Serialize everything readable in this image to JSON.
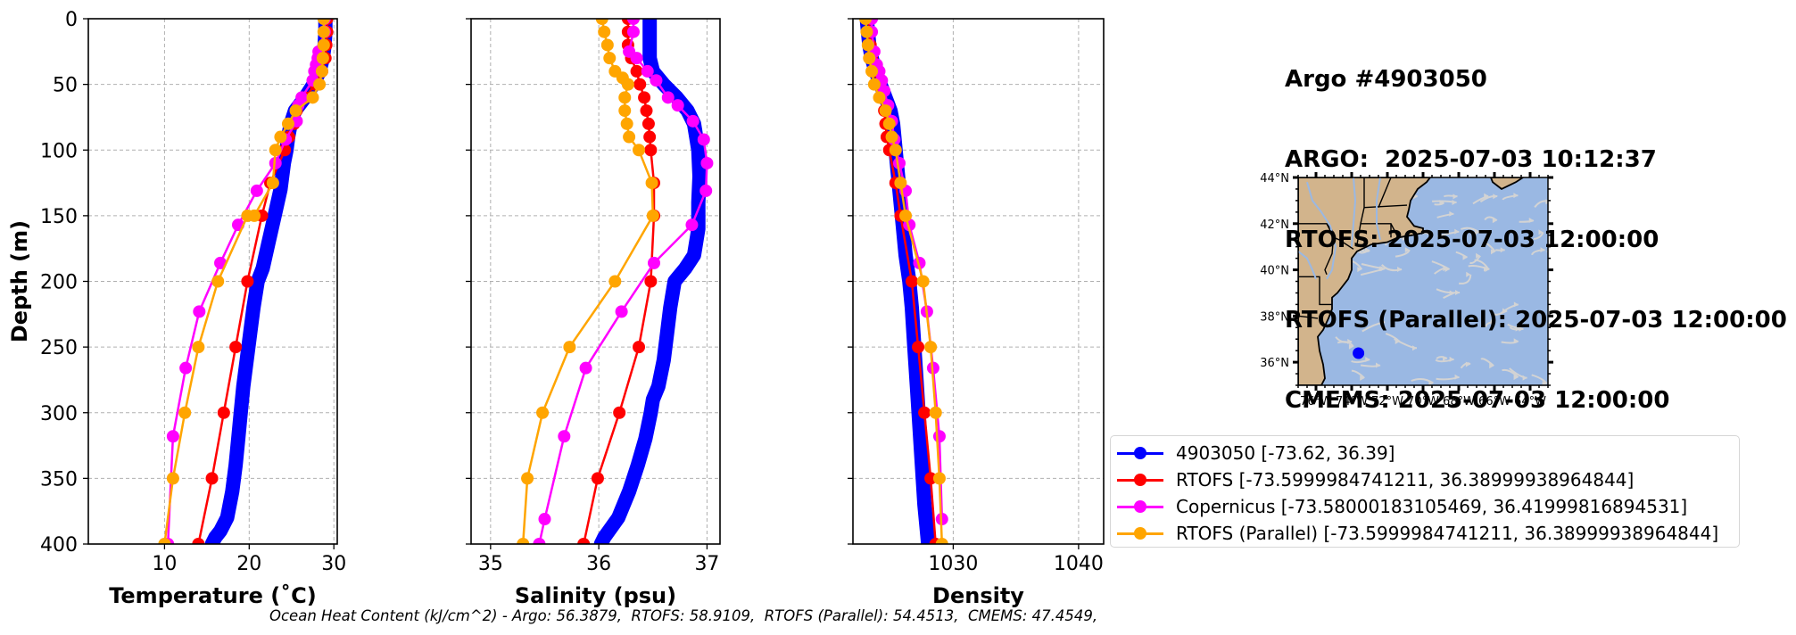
{
  "info": {
    "title": "Argo #4903050",
    "lines": [
      "ARGO:  2025-07-03 10:12:37",
      "RTOFS: 2025-07-03 12:00:00",
      "RTOFS (Parallel): 2025-07-03 12:00:00",
      "CMEMS: 2025-07-03 12:00:00"
    ]
  },
  "footnote": "Ocean Heat Content (kJ/cm^2) - Argo: 56.3879,  RTOFS: 58.9109,  RTOFS (Parallel): 54.4513,  CMEMS: 47.4549,",
  "legend": [
    {
      "label": "4903050 [-73.62, 36.39]",
      "color": "#0000ff"
    },
    {
      "label": "RTOFS [-73.5999984741211, 36.38999938964844]",
      "color": "#ff0000"
    },
    {
      "label": "Copernicus [-73.58000183105469, 36.41999816894531]",
      "color": "#ff00ff"
    },
    {
      "label": "RTOFS (Parallel) [-73.5999984741211, 36.38999938964844]",
      "color": "#ffa500"
    }
  ],
  "chart_data": [
    {
      "type": "line",
      "title": "",
      "xlabel": "Temperature (˚C)",
      "ylabel": "Depth (m)",
      "xlim": [
        1.0,
        30.4
      ],
      "ylim": [
        400,
        0
      ],
      "xticks": [
        10,
        20,
        30
      ],
      "yticks": [
        0,
        50,
        100,
        150,
        200,
        250,
        300,
        350,
        400
      ],
      "grid": true,
      "series": [
        {
          "name": "4903050",
          "color": "#0000ff",
          "thick": true,
          "x": [
            29.0,
            29.0,
            28.9,
            28.7,
            28.3,
            27.6,
            26.6,
            25.4,
            24.9,
            24.6,
            24.4,
            24.1,
            23.7,
            23.0,
            22.3,
            21.6,
            21.0,
            20.5,
            20.1,
            19.7,
            19.3,
            19.0,
            18.7,
            18.4,
            18.0,
            17.4,
            16.6,
            16.0,
            15.6
          ],
          "depth": [
            0,
            10,
            20,
            30,
            40,
            50,
            60,
            70,
            80,
            90,
            100,
            110,
            130,
            150,
            170,
            190,
            200,
            220,
            240,
            260,
            280,
            300,
            320,
            340,
            360,
            380,
            390,
            395,
            400
          ]
        },
        {
          "name": "RTOFS",
          "color": "#ff0000",
          "x": [
            29.2,
            29.2,
            29.1,
            29.0,
            28.6,
            27.8,
            26.6,
            25.6,
            25.3,
            24.7,
            24.2,
            22.5,
            21.5,
            19.8,
            18.4,
            17.0,
            15.6,
            14.0
          ],
          "depth": [
            0,
            10,
            20,
            30,
            40,
            50,
            60,
            70,
            80,
            90,
            100,
            125,
            150,
            200,
            250,
            300,
            350,
            400
          ]
        },
        {
          "name": "Copernicus",
          "color": "#ff00ff",
          "x": [
            28.9,
            28.9,
            28.2,
            28.1,
            27.9,
            27.7,
            27.5,
            26.2,
            25.8,
            25.6,
            24.3,
            23.1,
            20.9,
            18.7,
            16.6,
            14.1,
            12.5,
            11.0,
            10.4
          ],
          "depth": [
            0,
            10,
            25,
            30,
            35,
            40,
            47,
            60,
            66,
            78,
            92,
            110,
            131,
            157,
            186,
            223,
            266,
            318,
            400
          ]
        },
        {
          "name": "RTOFS (Parallel)",
          "color": "#ffa500",
          "x": [
            28.8,
            28.8,
            28.8,
            28.7,
            28.6,
            28.3,
            27.5,
            25.5,
            24.6,
            23.7,
            23.1,
            22.8,
            20.6,
            19.8,
            16.3,
            14.0,
            12.4,
            11.0,
            10.0
          ],
          "depth": [
            0,
            10,
            20,
            30,
            40,
            50,
            60,
            70,
            80,
            90,
            100,
            125,
            150,
            150,
            200,
            250,
            300,
            350,
            400
          ]
        }
      ]
    },
    {
      "type": "line",
      "title": "",
      "xlabel": "Salinity (psu)",
      "ylabel": "",
      "xlim": [
        34.82,
        37.12
      ],
      "ylim": [
        400,
        0
      ],
      "xticks": [
        35,
        36,
        37
      ],
      "yticks": [
        0,
        50,
        100,
        150,
        200,
        250,
        300,
        350,
        400
      ],
      "grid": true,
      "series": [
        {
          "name": "4903050",
          "color": "#0000ff",
          "thick": true,
          "x": [
            36.47,
            36.47,
            36.47,
            36.47,
            36.5,
            36.6,
            36.72,
            36.82,
            36.88,
            36.9,
            36.92,
            36.93,
            36.92,
            36.92,
            36.88,
            36.8,
            36.7,
            36.66,
            36.63,
            36.6,
            36.55,
            36.5,
            36.48,
            36.43,
            36.36,
            36.28,
            36.18,
            36.05,
            36.02
          ],
          "depth": [
            0,
            10,
            20,
            30,
            40,
            50,
            60,
            70,
            80,
            90,
            100,
            120,
            140,
            160,
            180,
            190,
            200,
            220,
            240,
            260,
            280,
            290,
            300,
            320,
            340,
            360,
            380,
            395,
            400
          ]
        },
        {
          "name": "RTOFS",
          "color": "#ff0000",
          "x": [
            36.27,
            36.27,
            36.27,
            36.3,
            36.35,
            36.38,
            36.42,
            36.44,
            36.46,
            36.47,
            36.48,
            36.51,
            36.51,
            36.48,
            36.37,
            36.19,
            35.99,
            35.86
          ],
          "depth": [
            0,
            10,
            20,
            30,
            40,
            50,
            60,
            70,
            80,
            90,
            100,
            125,
            150,
            200,
            250,
            300,
            350,
            400
          ]
        },
        {
          "name": "Copernicus",
          "color": "#ff00ff",
          "x": [
            36.32,
            36.32,
            36.28,
            36.35,
            36.45,
            36.53,
            36.64,
            36.73,
            36.87,
            36.97,
            37.0,
            36.99,
            36.86,
            36.51,
            36.21,
            35.88,
            35.68,
            35.5,
            35.45
          ],
          "depth": [
            0,
            10,
            25,
            30,
            40,
            47,
            60,
            66,
            78,
            92,
            110,
            131,
            157,
            186,
            223,
            266,
            318,
            381,
            400
          ]
        },
        {
          "name": "RTOFS (Parallel)",
          "color": "#ffa500",
          "x": [
            36.03,
            36.05,
            36.08,
            36.1,
            36.15,
            36.22,
            36.27,
            36.24,
            36.24,
            36.26,
            36.28,
            36.37,
            36.49,
            36.5,
            36.15,
            35.73,
            35.48,
            35.34,
            35.3
          ],
          "depth": [
            0,
            10,
            20,
            30,
            40,
            45,
            50,
            60,
            70,
            80,
            90,
            100,
            125,
            150,
            200,
            250,
            300,
            350,
            400
          ]
        }
      ]
    },
    {
      "type": "line",
      "title": "",
      "xlabel": "Density",
      "ylabel": "",
      "xlim": [
        1022,
        1042
      ],
      "ylim": [
        400,
        0
      ],
      "xticks": [
        1030,
        1040
      ],
      "yticks": [
        0,
        50,
        100,
        150,
        200,
        250,
        300,
        350,
        400
      ],
      "grid": true,
      "series": [
        {
          "name": "4903050",
          "color": "#0000ff",
          "thick": true,
          "x": [
            1023.1,
            1023.2,
            1023.3,
            1023.5,
            1023.8,
            1024.2,
            1024.6,
            1025.0,
            1025.2,
            1025.3,
            1025.4,
            1025.6,
            1025.8,
            1026.0,
            1026.2,
            1026.5,
            1026.7,
            1026.9,
            1027.1,
            1027.3,
            1027.5,
            1027.7,
            1028.0
          ],
          "depth": [
            0,
            10,
            20,
            30,
            40,
            50,
            60,
            70,
            80,
            90,
            100,
            120,
            140,
            160,
            180,
            200,
            220,
            250,
            280,
            310,
            340,
            370,
            400
          ]
        },
        {
          "name": "RTOFS",
          "color": "#ff0000",
          "x": [
            1023.3,
            1023.3,
            1023.4,
            1023.5,
            1023.8,
            1024.0,
            1024.2,
            1024.5,
            1024.6,
            1024.7,
            1024.9,
            1025.4,
            1025.8,
            1026.7,
            1027.2,
            1027.7,
            1028.2,
            1028.6
          ],
          "depth": [
            0,
            10,
            20,
            30,
            40,
            50,
            60,
            70,
            80,
            90,
            100,
            125,
            150,
            200,
            250,
            300,
            350,
            400
          ]
        },
        {
          "name": "Copernicus",
          "color": "#ff00ff",
          "x": [
            1023.5,
            1023.5,
            1023.7,
            1023.9,
            1024.1,
            1024.3,
            1024.5,
            1024.8,
            1025.1,
            1025.3,
            1025.7,
            1026.2,
            1026.5,
            1027.3,
            1027.9,
            1028.4,
            1028.9,
            1029.1
          ],
          "depth": [
            0,
            10,
            25,
            35,
            40,
            47,
            55,
            66,
            78,
            92,
            110,
            131,
            157,
            186,
            223,
            266,
            318,
            381
          ]
        },
        {
          "name": "RTOFS (Parallel)",
          "color": "#ffa500",
          "x": [
            1023.0,
            1023.1,
            1023.2,
            1023.3,
            1023.5,
            1023.7,
            1024.1,
            1024.6,
            1024.9,
            1025.1,
            1025.4,
            1025.8,
            1026.2,
            1027.6,
            1028.2,
            1028.6,
            1028.9,
            1029.1
          ],
          "depth": [
            0,
            10,
            20,
            30,
            40,
            50,
            60,
            70,
            80,
            90,
            100,
            125,
            150,
            200,
            250,
            300,
            350,
            400
          ]
        }
      ]
    },
    {
      "type": "map",
      "title": "",
      "lon_range": [
        -77,
        -63
      ],
      "lat_range": [
        35,
        44
      ],
      "xticks": [
        "76°W",
        "74°W",
        "72°W",
        "70°W",
        "68°W",
        "66°W",
        "64°W"
      ],
      "yticks": [
        "36°N",
        "38°N",
        "40°N",
        "42°N",
        "44°N"
      ],
      "point": {
        "lon": -73.62,
        "lat": 36.39,
        "color": "#0000ff"
      },
      "land_color": "#d2b48c",
      "ocean_color": "#9ab8e3",
      "streamline_color": "#d3d3d3"
    }
  ]
}
